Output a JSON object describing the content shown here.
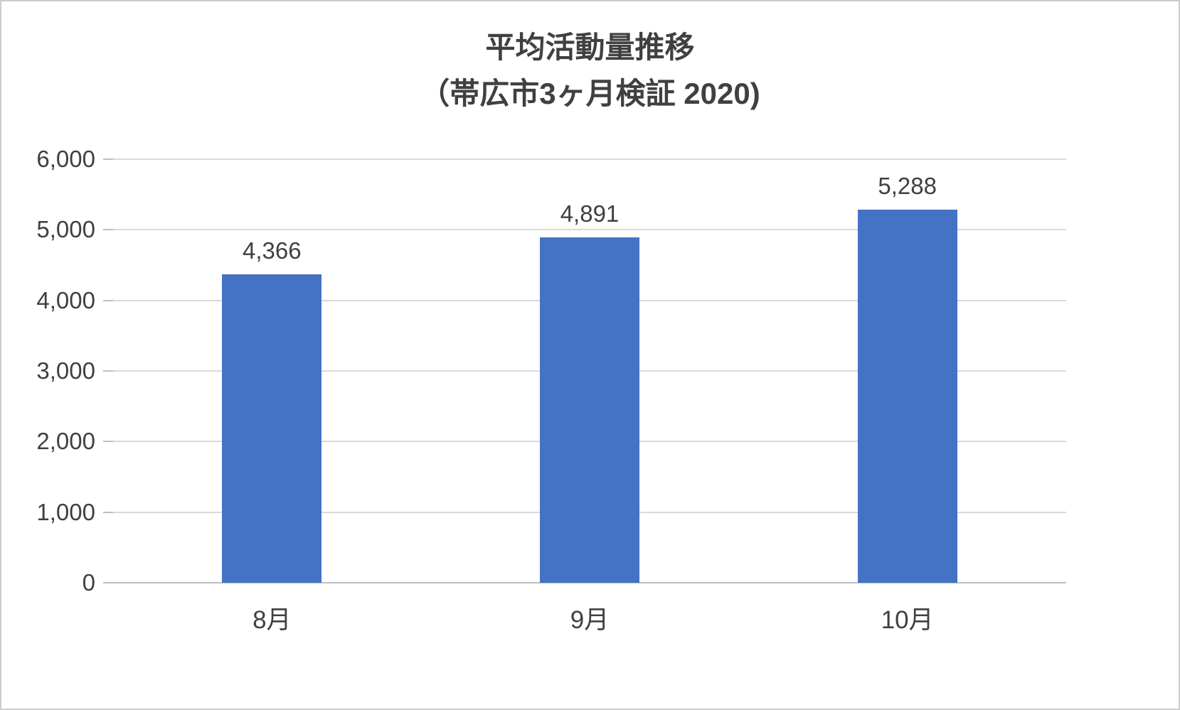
{
  "title": {
    "line1": "平均活動量推移",
    "line2": "（帯広市3ヶ月検証 2020)"
  },
  "chart_data": {
    "type": "bar",
    "title": "平均活動量推移（帯広市3ヶ月検証 2020)",
    "categories": [
      "8月",
      "9月",
      "10月"
    ],
    "values": [
      4366,
      4891,
      5288
    ],
    "value_labels": [
      "4,366",
      "4,891",
      "5,288"
    ],
    "xlabel": "",
    "ylabel": "",
    "ylim": [
      0,
      6000
    ],
    "ytick_interval": 1000,
    "ytick_labels": [
      "0",
      "1,000",
      "2,000",
      "3,000",
      "4,000",
      "5,000",
      "6,000"
    ],
    "grid": true,
    "legend": "none",
    "bar_color": "#4472C4",
    "text_color": "#404040",
    "gridline_color": "#D9D9D9",
    "axis_color": "#BFBFBF"
  }
}
